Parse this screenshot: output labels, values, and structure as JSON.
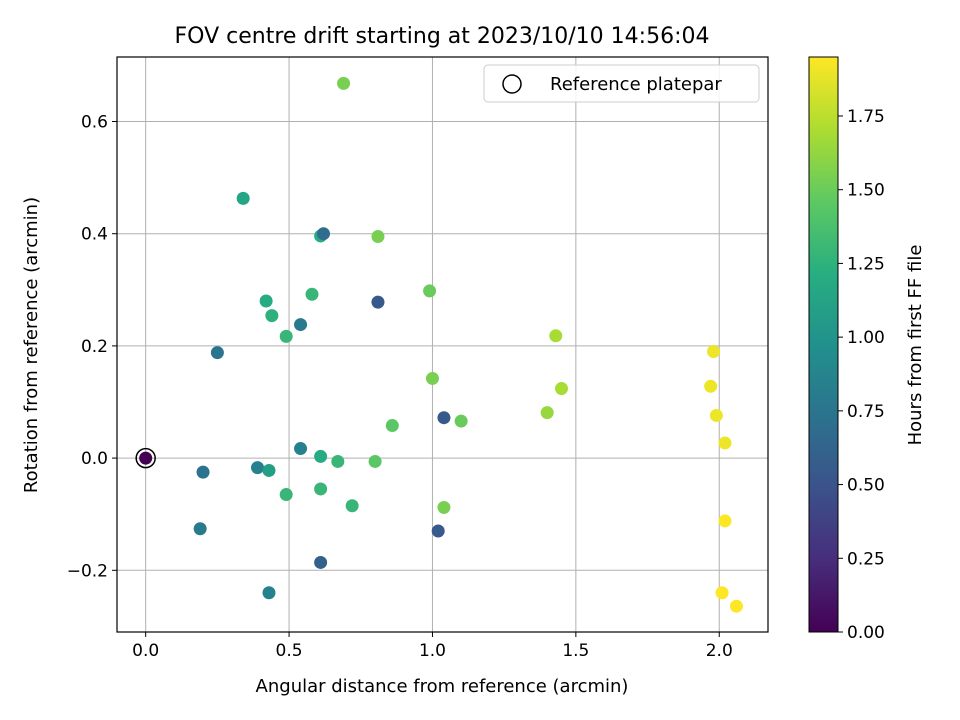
{
  "chart_data": {
    "type": "scatter",
    "title": "FOV centre drift starting at 2023/10/10 14:56:04",
    "xlabel": "Angular distance from reference (arcmin)",
    "ylabel": "Rotation from reference (arcmin)",
    "xlim": [
      -0.1,
      2.17
    ],
    "ylim": [
      -0.31,
      0.715
    ],
    "xticks": [
      0.0,
      0.5,
      1.0,
      1.5,
      2.0
    ],
    "xtick_labels": [
      "0.0",
      "0.5",
      "1.0",
      "1.5",
      "2.0"
    ],
    "yticks": [
      -0.2,
      0.0,
      0.2,
      0.4,
      0.6
    ],
    "ytick_labels": [
      "−0.2",
      "0.0",
      "0.2",
      "0.4",
      "0.6"
    ],
    "grid": true,
    "legend": {
      "position": "top-right",
      "entries": [
        "Reference platepar"
      ]
    },
    "reference_point": {
      "x": 0.0,
      "y": 0.0
    },
    "colorbar": {
      "label": "Hours from first FF file",
      "colormap": "viridis",
      "range": [
        0.0,
        1.95
      ],
      "ticks": [
        0.0,
        0.25,
        0.5,
        0.75,
        1.0,
        1.25,
        1.5,
        1.75
      ],
      "tick_labels": [
        "0.00",
        "0.25",
        "0.50",
        "0.75",
        "1.00",
        "1.25",
        "1.50",
        "1.75"
      ]
    },
    "points": [
      {
        "x": 0.0,
        "y": 0.0,
        "hours": 0.0
      },
      {
        "x": 0.2,
        "y": -0.025,
        "hours": 0.75
      },
      {
        "x": 0.19,
        "y": -0.126,
        "hours": 0.8
      },
      {
        "x": 0.25,
        "y": 0.188,
        "hours": 0.75
      },
      {
        "x": 0.39,
        "y": -0.017,
        "hours": 0.85
      },
      {
        "x": 0.43,
        "y": -0.022,
        "hours": 1.1
      },
      {
        "x": 0.43,
        "y": -0.24,
        "hours": 0.85
      },
      {
        "x": 0.34,
        "y": 0.463,
        "hours": 1.15
      },
      {
        "x": 0.42,
        "y": 0.28,
        "hours": 1.2
      },
      {
        "x": 0.44,
        "y": 0.254,
        "hours": 1.25
      },
      {
        "x": 0.49,
        "y": 0.217,
        "hours": 1.3
      },
      {
        "x": 0.49,
        "y": -0.065,
        "hours": 1.3
      },
      {
        "x": 0.54,
        "y": 0.238,
        "hours": 0.8
      },
      {
        "x": 0.54,
        "y": 0.017,
        "hours": 0.85
      },
      {
        "x": 0.58,
        "y": 0.292,
        "hours": 1.3
      },
      {
        "x": 0.61,
        "y": 0.396,
        "hours": 1.2
      },
      {
        "x": 0.62,
        "y": 0.4,
        "hours": 0.7
      },
      {
        "x": 0.61,
        "y": 0.003,
        "hours": 1.2
      },
      {
        "x": 0.61,
        "y": -0.055,
        "hours": 1.3
      },
      {
        "x": 0.61,
        "y": -0.186,
        "hours": 0.6
      },
      {
        "x": 0.67,
        "y": -0.006,
        "hours": 1.3
      },
      {
        "x": 0.69,
        "y": 0.668,
        "hours": 1.55
      },
      {
        "x": 0.72,
        "y": -0.085,
        "hours": 1.3
      },
      {
        "x": 0.8,
        "y": -0.006,
        "hours": 1.45
      },
      {
        "x": 0.81,
        "y": 0.278,
        "hours": 0.55
      },
      {
        "x": 0.81,
        "y": 0.395,
        "hours": 1.55
      },
      {
        "x": 0.86,
        "y": 0.058,
        "hours": 1.45
      },
      {
        "x": 0.99,
        "y": 0.298,
        "hours": 1.5
      },
      {
        "x": 1.0,
        "y": 0.142,
        "hours": 1.55
      },
      {
        "x": 1.02,
        "y": -0.13,
        "hours": 0.55
      },
      {
        "x": 1.04,
        "y": 0.072,
        "hours": 0.55
      },
      {
        "x": 1.04,
        "y": -0.088,
        "hours": 1.55
      },
      {
        "x": 1.1,
        "y": 0.066,
        "hours": 1.5
      },
      {
        "x": 1.4,
        "y": 0.081,
        "hours": 1.65
      },
      {
        "x": 1.43,
        "y": 0.218,
        "hours": 1.7
      },
      {
        "x": 1.45,
        "y": 0.124,
        "hours": 1.7
      },
      {
        "x": 1.97,
        "y": 0.128,
        "hours": 1.9
      },
      {
        "x": 1.98,
        "y": 0.19,
        "hours": 1.9
      },
      {
        "x": 1.99,
        "y": 0.076,
        "hours": 1.9
      },
      {
        "x": 2.02,
        "y": 0.027,
        "hours": 1.9
      },
      {
        "x": 2.02,
        "y": -0.112,
        "hours": 1.95
      },
      {
        "x": 2.01,
        "y": -0.24,
        "hours": 1.95
      },
      {
        "x": 2.06,
        "y": -0.264,
        "hours": 1.95
      }
    ]
  }
}
